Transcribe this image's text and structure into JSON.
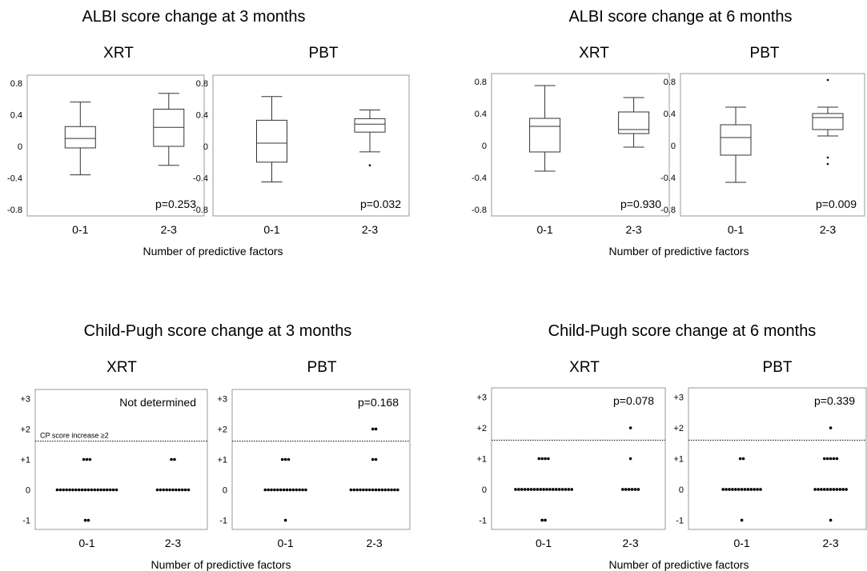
{
  "figure": {
    "top_left_title": "ALBI score change at 3 months",
    "top_right_title": "ALBI score change at 6 months",
    "bottom_left_title": "Child-Pugh score change at 3 months",
    "bottom_right_title": "Child-Pugh score change at 6 months",
    "xaxis_label": "Number of predictive factors",
    "cp_threshold_label": "CP score increase ≥2"
  },
  "chart_data": [
    {
      "type": "box",
      "title": "XRT",
      "group": "ALBI score change at 3 months",
      "xlabel": "Number of predictive factors",
      "categories": [
        "0-1",
        "2-3"
      ],
      "yticks": [
        "0.8",
        "0.4",
        "0",
        "-0.4",
        "-0.8"
      ],
      "ylim": [
        -0.88,
        0.9
      ],
      "boxes": [
        {
          "min": -0.36,
          "q1": -0.02,
          "median": 0.1,
          "q3": 0.25,
          "max": 0.56,
          "outliers": []
        },
        {
          "min": -0.24,
          "q1": 0.0,
          "median": 0.24,
          "q3": 0.47,
          "max": 0.67,
          "outliers": []
        }
      ],
      "annotation": "p=0.253"
    },
    {
      "type": "box",
      "title": "PBT",
      "group": "ALBI score change at 3 months",
      "xlabel": "Number of predictive factors",
      "categories": [
        "0-1",
        "2-3"
      ],
      "yticks": [
        "0.8",
        "0.4",
        "0",
        "-0.4",
        "-0.8"
      ],
      "ylim": [
        -0.88,
        0.9
      ],
      "boxes": [
        {
          "min": -0.45,
          "q1": -0.2,
          "median": 0.04,
          "q3": 0.33,
          "max": 0.63,
          "outliers": []
        },
        {
          "min": -0.07,
          "q1": 0.18,
          "median": 0.28,
          "q3": 0.35,
          "max": 0.46,
          "outliers": [
            -0.24
          ]
        }
      ],
      "annotation": "p=0.032"
    },
    {
      "type": "box",
      "title": "XRT",
      "group": "ALBI score change at 6 months",
      "xlabel": "Number of predictive factors",
      "categories": [
        "0-1",
        "2-3"
      ],
      "yticks": [
        "0.8",
        "0.4",
        "0",
        "-0.4",
        "-0.8"
      ],
      "ylim": [
        -0.88,
        0.9
      ],
      "boxes": [
        {
          "min": -0.32,
          "q1": -0.08,
          "median": 0.24,
          "q3": 0.34,
          "max": 0.75,
          "outliers": []
        },
        {
          "min": -0.02,
          "q1": 0.15,
          "median": 0.2,
          "q3": 0.42,
          "max": 0.6,
          "outliers": []
        }
      ],
      "annotation": "p=0.930"
    },
    {
      "type": "box",
      "title": "PBT",
      "group": "ALBI score change at 6 months",
      "xlabel": "Number of predictive factors",
      "categories": [
        "0-1",
        "2-3"
      ],
      "yticks": [
        "0.8",
        "0.4",
        "0",
        "-0.4",
        "-0.8"
      ],
      "ylim": [
        -0.88,
        0.9
      ],
      "boxes": [
        {
          "min": -0.46,
          "q1": -0.12,
          "median": 0.1,
          "q3": 0.26,
          "max": 0.48,
          "outliers": []
        },
        {
          "min": 0.12,
          "q1": 0.2,
          "median": 0.35,
          "q3": 0.4,
          "max": 0.48,
          "outliers": [
            0.82,
            -0.15,
            -0.23
          ]
        }
      ],
      "annotation": "p=0.009"
    },
    {
      "type": "scatter",
      "title": "XRT",
      "group": "Child-Pugh score change at 3 months",
      "xlabel": "Number of predictive factors",
      "categories": [
        "0-1",
        "2-3"
      ],
      "yticks": [
        "+3",
        "+2",
        "+1",
        "0",
        "-1"
      ],
      "ylim": [
        -1.3,
        3.3
      ],
      "threshold": 1.6,
      "show_threshold_label": true,
      "counts": [
        {
          "2": 0,
          "1": 3,
          "0": 20,
          "-1": 2
        },
        {
          "2": 0,
          "1": 2,
          "0": 11,
          "-1": 0
        }
      ],
      "annotation": "Not determined"
    },
    {
      "type": "scatter",
      "title": "PBT",
      "group": "Child-Pugh score change at 3 months",
      "xlabel": "Number of predictive factors",
      "categories": [
        "0-1",
        "2-3"
      ],
      "yticks": [
        "+3",
        "+2",
        "+1",
        "0",
        "-1"
      ],
      "ylim": [
        -1.3,
        3.3
      ],
      "threshold": 1.6,
      "show_threshold_label": false,
      "counts": [
        {
          "2": 0,
          "1": 3,
          "0": 14,
          "-1": 1
        },
        {
          "2": 2,
          "1": 2,
          "0": 16,
          "-1": 0
        }
      ],
      "annotation": "p=0.168"
    },
    {
      "type": "scatter",
      "title": "XRT",
      "group": "Child-Pugh score change at 6 months",
      "xlabel": "Number of predictive factors",
      "categories": [
        "0-1",
        "2-3"
      ],
      "yticks": [
        "+3",
        "+2",
        "+1",
        "0",
        "-1"
      ],
      "ylim": [
        -1.3,
        3.3
      ],
      "threshold": 1.6,
      "show_threshold_label": false,
      "counts": [
        {
          "2": 0,
          "1": 4,
          "0": 19,
          "-1": 2
        },
        {
          "2": 1,
          "1": 1,
          "0": 6,
          "-1": 0
        }
      ],
      "annotation": "p=0.078"
    },
    {
      "type": "scatter",
      "title": "PBT",
      "group": "Child-Pugh score change at 6 months",
      "xlabel": "Number of predictive factors",
      "categories": [
        "0-1",
        "2-3"
      ],
      "yticks": [
        "+3",
        "+2",
        "+1",
        "0",
        "-1"
      ],
      "ylim": [
        -1.3,
        3.3
      ],
      "threshold": 1.6,
      "show_threshold_label": false,
      "counts": [
        {
          "2": 0,
          "1": 2,
          "0": 13,
          "-1": 1
        },
        {
          "2": 1,
          "1": 5,
          "0": 11,
          "-1": 1
        }
      ],
      "annotation": "p=0.339"
    }
  ]
}
